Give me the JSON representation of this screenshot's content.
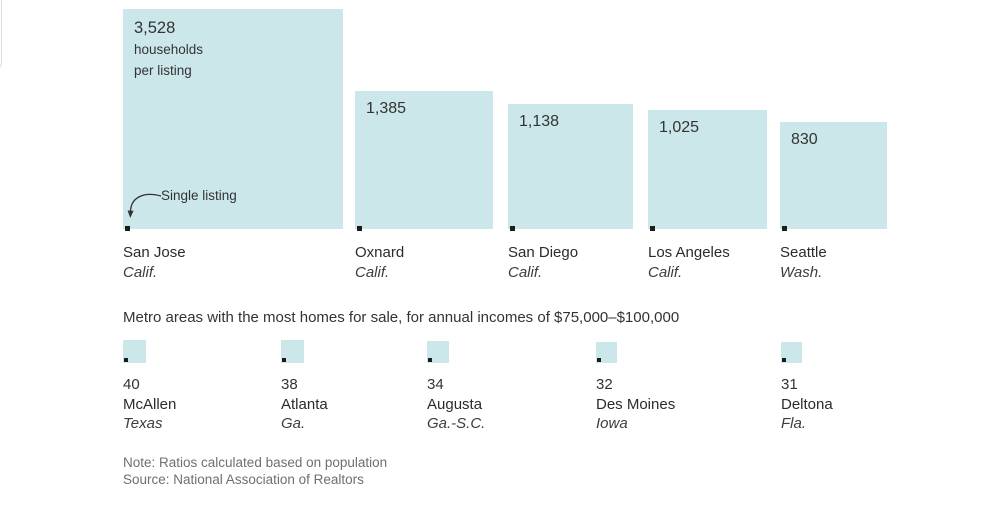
{
  "colors": {
    "square_fill": "#cbe7ea",
    "single_listing_marker": "#1c1c1c",
    "text_dark": "#333333",
    "text_muted": "#6f6f6f"
  },
  "notes": {
    "note": "Note: Ratios calculated based on population",
    "source": "Source: National Association of Realtors"
  },
  "chart_data": {
    "type": "bar",
    "variant": "proportional-area-squares",
    "value_unit": "households per listing",
    "annotation": "Single listing",
    "legend_hint": "square area is proportional to households per listing; tiny black square represents a single listing",
    "groups": [
      {
        "value_suffix_lines": [
          "households",
          "per listing"
        ],
        "points": [
          {
            "value": 3528,
            "value_label": "3,528",
            "city": "San Jose",
            "state": "Calif."
          },
          {
            "value": 1385,
            "value_label": "1,385",
            "city": "Oxnard",
            "state": "Calif."
          },
          {
            "value": 1138,
            "value_label": "1,138",
            "city": "San Diego",
            "state": "Calif."
          },
          {
            "value": 1025,
            "value_label": "1,025",
            "city": "Los Angeles",
            "state": "Calif."
          },
          {
            "value": 830,
            "value_label": "830",
            "city": "Seattle",
            "state": "Wash."
          }
        ]
      },
      {
        "title": "Metro areas with the most homes for sale, for annual incomes of $75,000–$100,000",
        "points": [
          {
            "value": 40,
            "value_label": "40",
            "city": "McAllen",
            "state": "Texas"
          },
          {
            "value": 38,
            "value_label": "38",
            "city": "Atlanta",
            "state": "Ga."
          },
          {
            "value": 34,
            "value_label": "34",
            "city": "Augusta",
            "state": "Ga.-S.C."
          },
          {
            "value": 32,
            "value_label": "32",
            "city": "Des Moines",
            "state": "Iowa"
          },
          {
            "value": 31,
            "value_label": "31",
            "city": "Deltona",
            "state": "Fla."
          }
        ]
      }
    ]
  }
}
